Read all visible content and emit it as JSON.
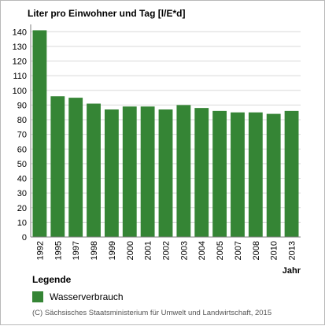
{
  "chart_data": {
    "type": "bar",
    "title": "Liter pro Einwohner und Tag [l/E*d]",
    "xlabel": "Jahr",
    "ylabel": "",
    "categories": [
      "1992",
      "1995",
      "1997",
      "1998",
      "1999",
      "2000",
      "2001",
      "2002",
      "2003",
      "2004",
      "2005",
      "2007",
      "2008",
      "2010",
      "2013"
    ],
    "series": [
      {
        "name": "Wasserverbrauch",
        "values": [
          141,
          96,
          95,
          91,
          87,
          89,
          89,
          87,
          90,
          88,
          86,
          85,
          85,
          84,
          86
        ]
      }
    ],
    "ylim": [
      0,
      145
    ],
    "yticks": [
      0,
      10,
      20,
      30,
      40,
      50,
      60,
      70,
      80,
      90,
      100,
      110,
      120,
      130,
      140
    ],
    "grid": true,
    "legend_position": "bottom-left",
    "bar_color": "#358535",
    "grid_color": "#d9d9d9"
  },
  "legend": {
    "title": "Legende",
    "item_label": "Wasserverbrauch"
  },
  "source": "(C) Sächsisches Staatsministerium für Umwelt und Landwirtschaft, 2015"
}
